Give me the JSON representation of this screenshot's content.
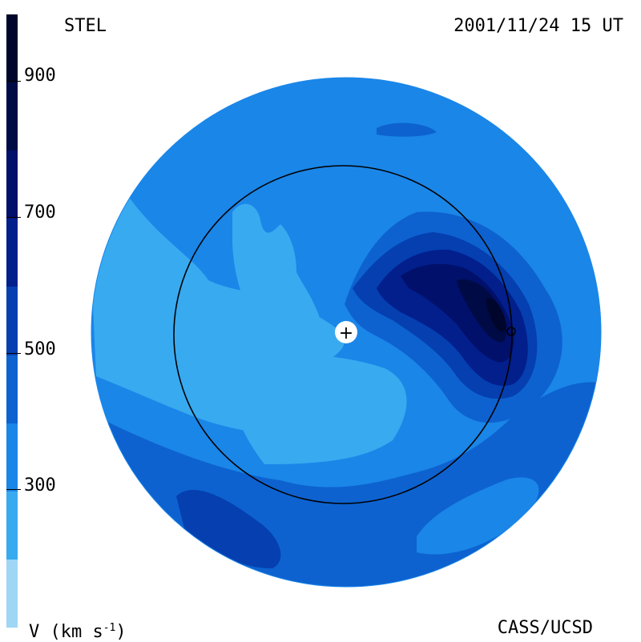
{
  "header": {
    "observatory": "STEL",
    "timestamp": "2001/11/24 15 UT"
  },
  "footer": {
    "unit_base": "V (km s",
    "unit_exp": "-1",
    "unit_close": ")",
    "credit": "CASS/UCSD"
  },
  "colorbar": {
    "ticks": [
      {
        "label": "900",
        "value": 900
      },
      {
        "label": "700",
        "value": 700
      },
      {
        "label": "500",
        "value": 500
      },
      {
        "label": "300",
        "value": 300
      }
    ],
    "range": [
      100,
      1000
    ],
    "bands": [
      {
        "from": 100,
        "to": 200,
        "color": "#9fd6f5"
      },
      {
        "from": 200,
        "to": 300,
        "color": "#38aaf0"
      },
      {
        "from": 300,
        "to": 400,
        "color": "#1a86e8"
      },
      {
        "from": 400,
        "to": 500,
        "color": "#0d62d0"
      },
      {
        "from": 500,
        "to": 600,
        "color": "#053fb0"
      },
      {
        "from": 600,
        "to": 700,
        "color": "#021f8c"
      },
      {
        "from": 700,
        "to": 800,
        "color": "#01106a"
      },
      {
        "from": 800,
        "to": 900,
        "color": "#000a45"
      },
      {
        "from": 900,
        "to": 1000,
        "color": "#00062b"
      }
    ]
  },
  "map": {
    "sun_marker": "+"
  }
}
